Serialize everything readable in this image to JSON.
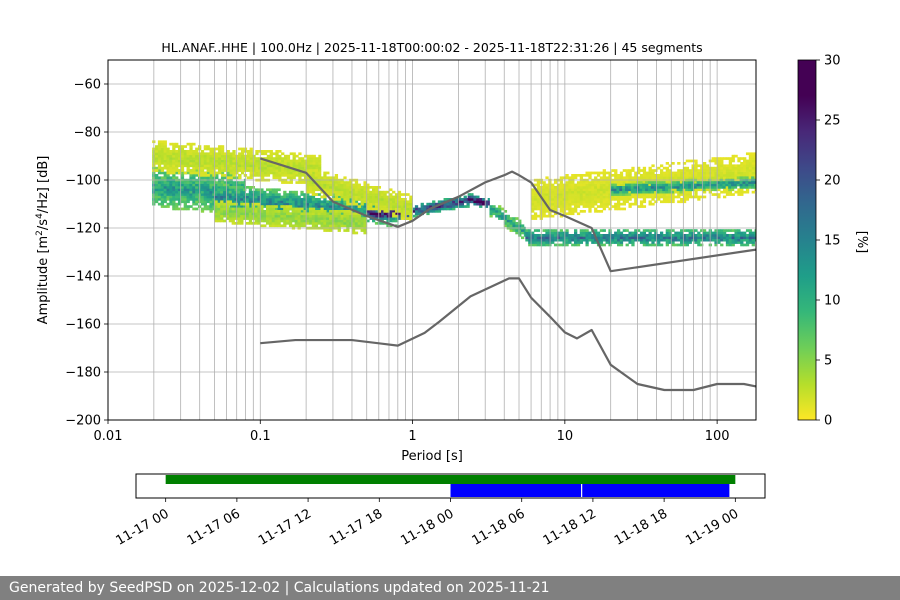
{
  "chart_data": {
    "type": "heatmap",
    "title": "HL.ANAF..HHE | 100.0Hz | 2025-11-18T00:00:02 - 2025-11-18T22:31:26 | 45 segments",
    "xlabel": "Period [s]",
    "ylabel": "Amplitude [m²/s⁴/Hz] [dB]",
    "x_scale": "log",
    "xlim": [
      0.01,
      180
    ],
    "ylim": [
      -200,
      -50
    ],
    "x_ticks": [
      {
        "value": 0.01,
        "label": "0.01"
      },
      {
        "value": 0.1,
        "label": "0.1"
      },
      {
        "value": 1,
        "label": "1"
      },
      {
        "value": 10,
        "label": "10"
      },
      {
        "value": 100,
        "label": "100"
      }
    ],
    "y_ticks": [
      {
        "value": -60,
        "label": "−60"
      },
      {
        "value": -80,
        "label": "−80"
      },
      {
        "value": -100,
        "label": "−100"
      },
      {
        "value": -120,
        "label": "−120"
      },
      {
        "value": -140,
        "label": "−140"
      },
      {
        "value": -160,
        "label": "−160"
      },
      {
        "value": -180,
        "label": "−180"
      },
      {
        "value": -200,
        "label": "−200"
      }
    ],
    "grid": true,
    "colormap": "viridis_r",
    "colorbar": {
      "label": "[%]",
      "range": [
        0,
        30
      ],
      "ticks": [
        {
          "value": 0,
          "label": "0"
        },
        {
          "value": 5,
          "label": "5"
        },
        {
          "value": 10,
          "label": "10"
        },
        {
          "value": 15,
          "label": "15"
        },
        {
          "value": 20,
          "label": "20"
        },
        {
          "value": 25,
          "label": "25"
        },
        {
          "value": 30,
          "label": "30"
        }
      ]
    },
    "reference_curves": [
      {
        "points": [
          [
            0.1,
            -91
          ],
          [
            0.2,
            -97
          ],
          [
            0.3,
            -109
          ],
          [
            0.5,
            -115
          ],
          [
            0.8,
            -119.5
          ],
          [
            1,
            -117
          ],
          [
            1.3,
            -112
          ],
          [
            2,
            -107
          ],
          [
            3,
            -101
          ],
          [
            4,
            -98
          ],
          [
            4.5,
            -96.5
          ],
          [
            5,
            -98
          ],
          [
            6,
            -101
          ],
          [
            8,
            -112.5
          ],
          [
            10,
            -115
          ],
          [
            15,
            -120
          ],
          [
            20,
            -138
          ],
          [
            180,
            -129
          ]
        ]
      },
      {
        "points": [
          [
            0.1,
            -168
          ],
          [
            0.17,
            -166.7
          ],
          [
            0.4,
            -166.7
          ],
          [
            0.8,
            -169
          ],
          [
            1.2,
            -163.7
          ],
          [
            1.5,
            -159
          ],
          [
            2.4,
            -148.5
          ],
          [
            4.3,
            -141
          ],
          [
            5,
            -141
          ],
          [
            6,
            -149
          ],
          [
            8,
            -157
          ],
          [
            10,
            -163.5
          ],
          [
            12,
            -166
          ],
          [
            15,
            -162.5
          ],
          [
            20,
            -177
          ],
          [
            30,
            -185
          ],
          [
            45,
            -187.5
          ],
          [
            70,
            -187.5
          ],
          [
            100,
            -185
          ],
          [
            150,
            -185
          ],
          [
            180,
            -186
          ]
        ]
      }
    ],
    "psd_bands": [
      {
        "from": 0.0195,
        "to": 0.08,
        "center_start": -103,
        "center_end": -106,
        "spread": 8,
        "level": 12
      },
      {
        "from": 0.05,
        "to": 0.8,
        "center_start": -107,
        "center_end": -114,
        "spread": 5,
        "level": 14
      },
      {
        "from": 0.5,
        "to": 0.95,
        "center_start": -114,
        "center_end": -114,
        "spread": 2,
        "level": 28
      },
      {
        "from": 0.95,
        "to": 2.5,
        "center_start": -113,
        "center_end": -108,
        "spread": 2,
        "level": 22
      },
      {
        "from": 2.3,
        "to": 3.2,
        "center_start": -108,
        "center_end": -110,
        "spread": 1.5,
        "level": 30
      },
      {
        "from": 3.2,
        "to": 5.5,
        "center_start": -112,
        "center_end": -122,
        "spread": 3,
        "level": 12
      },
      {
        "from": 5.5,
        "to": 180,
        "center_start": -124,
        "center_end": -124,
        "spread": 3,
        "level": 16
      },
      {
        "from": 0.0195,
        "to": 0.25,
        "center_start": -90,
        "center_end": -96,
        "spread": 6,
        "level": 3
      },
      {
        "from": 0.2,
        "to": 1.0,
        "center_start": -100,
        "center_end": -112,
        "spread": 5,
        "level": 3
      },
      {
        "from": 0.05,
        "to": 0.5,
        "center_start": -113,
        "center_end": -118,
        "spread": 4,
        "level": 5
      },
      {
        "from": 6,
        "to": 180,
        "center_start": -108,
        "center_end": -97,
        "spread": 8,
        "level": 2
      },
      {
        "from": 20,
        "to": 180,
        "center_start": -104,
        "center_end": -101,
        "spread": 2,
        "level": 14
      }
    ],
    "timeline": {
      "tick_labels": [
        "11-17 00",
        "11-17 06",
        "11-17 12",
        "11-17 18",
        "11-18 00",
        "11-18 06",
        "11-18 12",
        "11-18 18",
        "11-19 00"
      ],
      "range_hours": [
        -2.5,
        50.5
      ],
      "available_data": {
        "start_hour": 0,
        "end_hour": 48,
        "color": "#008000"
      },
      "psd_segments": [
        {
          "start_hour": 0,
          "end_hour": 11,
          "color": "#0000ff"
        },
        {
          "start_hour": 11.1,
          "end_hour": 23.5,
          "color": "#0000ff"
        }
      ]
    }
  },
  "footer": {
    "text": "Generated by SeedPSD on 2025-12-02 | Calculations updated on 2025-11-21"
  }
}
